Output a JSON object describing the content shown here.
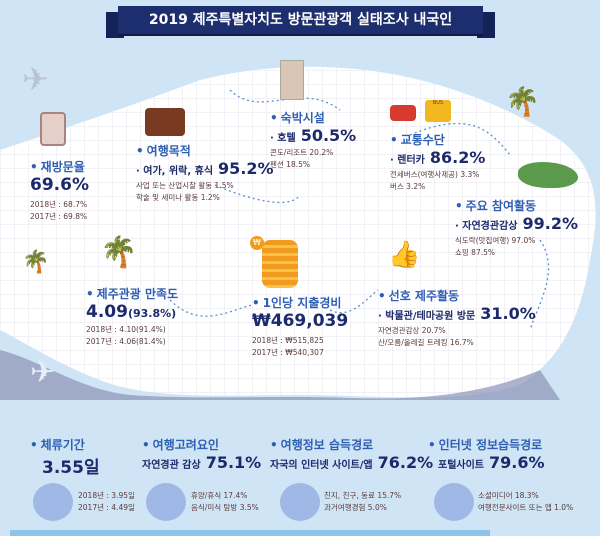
{
  "title": "2019 제주특별자치도 방문관광객 실태조사 내국인",
  "revisit": {
    "label": "재방문율",
    "value": "69.6%",
    "history": [
      "2018년 : 68.7%",
      "2017년 : 69.8%"
    ]
  },
  "purpose": {
    "label": "여행목적",
    "top": "· 여가, 위락, 휴식",
    "top_value": "95.2%",
    "others": [
      "사업 또는 산업시찰 활동 1.5%",
      "학술 및 세미나 활동  1.2%"
    ]
  },
  "lodging": {
    "label": "숙박시설",
    "top": "· 호텔",
    "top_value": "50.5%",
    "others": [
      "콘도/리조트 20.2%",
      "펜션 18.5%"
    ]
  },
  "transport": {
    "label": "교통수단",
    "top": "· 렌터카",
    "top_value": "86.2%",
    "others": [
      "전세버스(여행사제공) 3.3%",
      "버스 3.2%"
    ],
    "bus_text": "BUS"
  },
  "activity": {
    "label": "주요 참여활동",
    "top": "· 자연경관감상",
    "top_value": "99.2%",
    "others": [
      "식도락(맛집여행) 97.0%",
      "쇼핑 87.5%"
    ]
  },
  "satisfaction": {
    "label": "제주관광 만족도",
    "value": "4.09",
    "value_pct": "(93.8%)",
    "history": [
      "2018년 : 4.10(91.4%)",
      "2017년 : 4.06(81.4%)"
    ]
  },
  "spending": {
    "label": "1인당 지출경비",
    "value": "₩469,039",
    "history": [
      "2018년 : ₩515,825",
      "2017년 : ₩540,307"
    ],
    "coin": "₩"
  },
  "preferred": {
    "label": "선호 제주활동",
    "top": "· 박물관/테마공원 방문",
    "top_value": "31.0%",
    "others": [
      "자연경관감상 20.7%",
      "산/오름/올레길 트레킹 16.7%"
    ]
  },
  "bottom": [
    {
      "label": "체류기간",
      "top": "",
      "value": "3.55일",
      "details": [
        "2018년 : 3.95일",
        "2017년 : 4.49일"
      ]
    },
    {
      "label": "여행고려요인",
      "top": "자연경관 감상",
      "value": "75.1%",
      "details": [
        "휴양/휴식 17.4%",
        "음식/미식 탐방 3.5%"
      ]
    },
    {
      "label": "여행정보 습득경로",
      "top": "자국의 인터넷 사이트/앱",
      "value": "76.2%",
      "details": [
        "친지, 친구, 동료 15.7%",
        "과거여행경험 5.0%"
      ]
    },
    {
      "label": "인터넷 정보습득경로",
      "top": "포털사이트",
      "value": "79.6%",
      "details": [
        "소셜미디어 18.3%",
        "여행전문사이트 또는 앱 1.0%"
      ]
    }
  ],
  "colors": {
    "navy": "#1c2a6b",
    "accent": "#2f5fb3",
    "sky": "#cfe5f6"
  }
}
